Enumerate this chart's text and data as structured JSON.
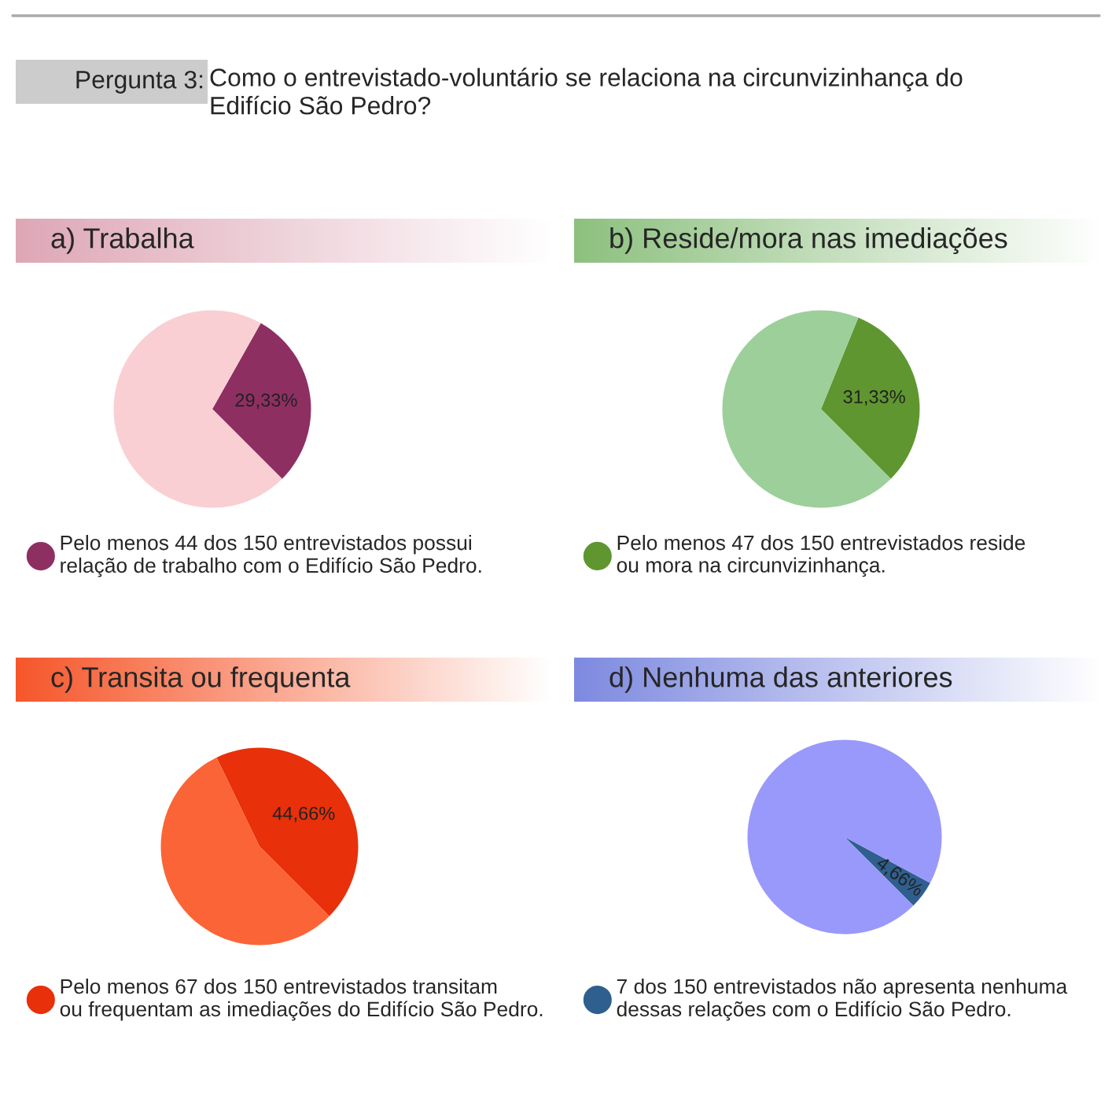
{
  "chart_data": [
    {
      "type": "pie",
      "title": "a) Trabalha",
      "annotations": [
        "Pergunta 3:",
        "Como o entrevistado-voluntário se relaciona na circunvizinhança do\nEdifício São Pedro?"
      ],
      "categories": [
        "Pelo menos 44 dos 150 entrevistados possui\nrelação de trabalho com o Edifício São Pedro.",
        null
      ],
      "values": [
        29.33,
        70.67
      ],
      "colors": [
        "#8e2f62",
        "#f9cfd3"
      ],
      "value_labels": [
        "29,33%",
        null
      ],
      "legend": "bottom"
    },
    {
      "type": "pie",
      "title": "b) Reside/mora nas imediações",
      "categories": [
        "Pelo menos 47 dos 150 entrevistados reside\nou mora na circunvizinhança.",
        null
      ],
      "values": [
        31.33,
        68.67
      ],
      "colors": [
        "#5f9630",
        "#9dcf9a"
      ],
      "value_labels": [
        "31,33%",
        null
      ],
      "legend": "bottom"
    },
    {
      "type": "pie",
      "title": "c) Transita ou frequenta",
      "categories": [
        "Pelo menos 67 dos 150 entrevistados transitam\nou frequentam as imediações do Edifício São Pedro.",
        null
      ],
      "values": [
        44.66,
        55.34
      ],
      "colors": [
        "#e8300a",
        "#fb6436"
      ],
      "value_labels": [
        "44,66%",
        null
      ],
      "legend": "bottom"
    },
    {
      "type": "pie",
      "title": "d) Nenhuma das anteriores",
      "categories": [
        "7 dos 150 entrevistados não apresenta nenhuma\ndessas relações com o Edifício São Pedro.",
        null
      ],
      "values": [
        4.66,
        95.34
      ],
      "colors": [
        "#2f5f8f",
        "#9999fb"
      ],
      "value_labels": [
        "4,66%",
        null
      ],
      "legend": "bottom"
    }
  ]
}
